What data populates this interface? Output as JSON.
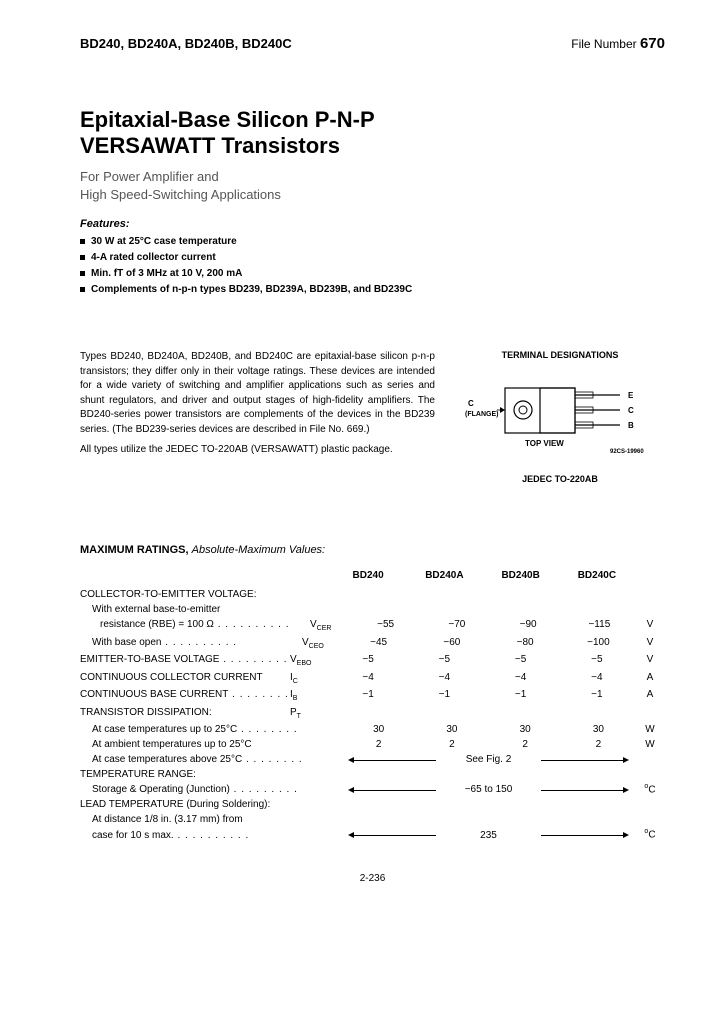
{
  "header": {
    "parts": "BD240, BD240A, BD240B, BD240C",
    "file_label": "File Number",
    "file_number": "670"
  },
  "title_line1": "Epitaxial-Base Silicon P-N-P",
  "title_line2": "VERSAWATT Transistors",
  "subtitle_line1": "For Power Amplifier and",
  "subtitle_line2": "High Speed-Switching Applications",
  "features_label": "Features:",
  "features": [
    "30 W at 25°C case temperature",
    "4-A rated collector current",
    "Min. fT of 3 MHz at 10 V, 200 mA",
    "Complements of n-p-n types BD239, BD239A, BD239B, and BD239C"
  ],
  "description": {
    "para1": "Types BD240, BD240A, BD240B, and BD240C are epitaxial-base silicon p-n-p transistors; they differ only in their voltage ratings. These devices are intended for a wide variety of switching and amplifier applications such as series and shunt regulators, and driver and output stages of high-fidelity amplifiers. The BD240-series power transistors are complements of the devices in the BD239 series. (The BD239-series devices are described in File No. 669.)",
    "para2": "All types utilize the JEDEC TO-220AB (VERSAWATT) plastic package."
  },
  "diagram": {
    "title": "TERMINAL DESIGNATIONS",
    "pin_e": "E",
    "pin_c": "C",
    "pin_b": "B",
    "flange": "C\n(FLANGE)",
    "top_view": "TOP VIEW",
    "package": "JEDEC TO-220AB",
    "code": "92CS-19960"
  },
  "ratings": {
    "heading": "MAXIMUM RATINGS,",
    "heading_ital": "Absolute-Maximum Values:",
    "columns": [
      "BD240",
      "BD240A",
      "BD240B",
      "BD240C"
    ],
    "rows": [
      {
        "label": "COLLECTOR-TO-EMITTER VOLTAGE:",
        "type": "group"
      },
      {
        "label": "With external base-to-emitter",
        "type": "cont",
        "indent": 1
      },
      {
        "label": "resistance (RBE) = 100 Ω",
        "symbol": "VCER",
        "values": [
          "−55",
          "−70",
          "−90",
          "−115"
        ],
        "unit": "V",
        "indent": 2,
        "dots": true
      },
      {
        "label": "With base open",
        "symbol": "VCEO",
        "values": [
          "−45",
          "−60",
          "−80",
          "−100"
        ],
        "unit": "V",
        "indent": 1,
        "dots": true
      },
      {
        "label": "EMITTER-TO-BASE VOLTAGE",
        "symbol": "VEBO",
        "values": [
          "−5",
          "−5",
          "−5",
          "−5"
        ],
        "unit": "V",
        "dots": true
      },
      {
        "label": "CONTINUOUS COLLECTOR CURRENT",
        "symbol": "IC",
        "values": [
          "−4",
          "−4",
          "−4",
          "−4"
        ],
        "unit": "A"
      },
      {
        "label": "CONTINUOUS BASE CURRENT",
        "symbol": "IB",
        "values": [
          "−1",
          "−1",
          "−1",
          "−1"
        ],
        "unit": "A",
        "dots": true
      },
      {
        "label": "TRANSISTOR DISSIPATION:",
        "symbol": "PT",
        "type": "group"
      },
      {
        "label": "At case temperatures up to 25°C",
        "values": [
          "30",
          "30",
          "30",
          "30"
        ],
        "unit": "W",
        "indent": 1,
        "dots": true
      },
      {
        "label": "At ambient temperatures up to 25°C",
        "values": [
          "2",
          "2",
          "2",
          "2"
        ],
        "unit": "W",
        "indent": 1
      },
      {
        "label": "At case temperatures above 25°C",
        "span": "See Fig. 2",
        "indent": 1,
        "dots": true
      },
      {
        "label": "TEMPERATURE RANGE:",
        "type": "group"
      },
      {
        "label": "Storage & Operating (Junction)",
        "span": "−65 to 150",
        "unit": "°C",
        "indent": 1,
        "dots": true
      },
      {
        "label": "LEAD TEMPERATURE (During Soldering):",
        "type": "group"
      },
      {
        "label": "At distance 1/8 in. (3.17 mm) from",
        "type": "cont",
        "indent": 1
      },
      {
        "label": "case for 10 s max.",
        "span": "235",
        "unit": "°C",
        "indent": 1,
        "dots": true
      }
    ]
  },
  "page_number": "2-236"
}
